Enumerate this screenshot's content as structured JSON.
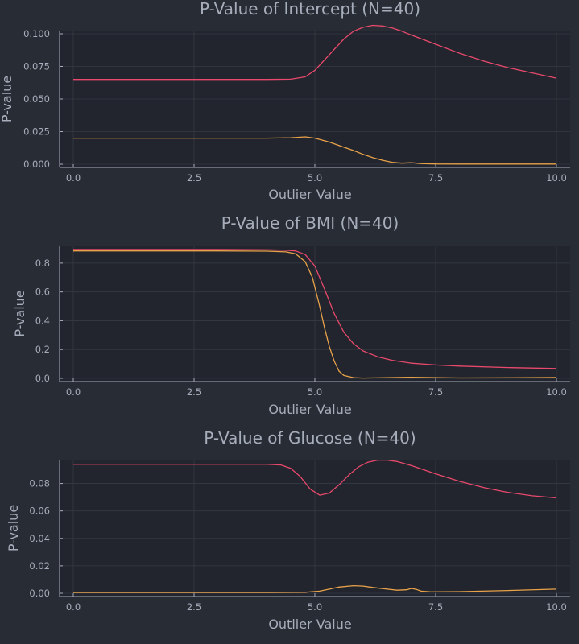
{
  "chart_data": [
    {
      "type": "line",
      "title": "P-Value of Intercept (N=40)",
      "xlabel": "Outlier Value",
      "ylabel": "P-value",
      "xlim": [
        0,
        10
      ],
      "ylim": [
        0,
        0.1
      ],
      "x_ticks": [
        "0.0",
        "2.5",
        "5.0",
        "7.5",
        "10.0"
      ],
      "y_ticks": [
        "0.000",
        "0.025",
        "0.050",
        "0.075",
        "0.100"
      ],
      "grid": true,
      "series": [
        {
          "color": "#e8496c",
          "x": [
            0,
            1,
            2,
            3,
            4,
            4.5,
            4.8,
            5.0,
            5.2,
            5.4,
            5.6,
            5.8,
            6.0,
            6.2,
            6.4,
            6.6,
            6.8,
            7.0,
            7.5,
            8.0,
            8.5,
            9.0,
            9.5,
            10.0
          ],
          "y": [
            0.065,
            0.065,
            0.065,
            0.065,
            0.065,
            0.0652,
            0.067,
            0.072,
            0.08,
            0.088,
            0.096,
            0.102,
            0.105,
            0.1065,
            0.106,
            0.1045,
            0.102,
            0.099,
            0.092,
            0.085,
            0.079,
            0.074,
            0.07,
            0.066
          ]
        },
        {
          "color": "#e8a24a",
          "x": [
            0,
            1,
            2,
            3,
            4,
            4.5,
            4.8,
            5.0,
            5.3,
            5.6,
            5.8,
            6.0,
            6.2,
            6.4,
            6.6,
            6.8,
            7.0,
            7.2,
            7.5,
            8.0,
            9.0,
            10.0
          ],
          "y": [
            0.02,
            0.02,
            0.02,
            0.02,
            0.02,
            0.0203,
            0.021,
            0.02,
            0.017,
            0.013,
            0.0105,
            0.0075,
            0.005,
            0.003,
            0.0015,
            0.0008,
            0.0012,
            0.0005,
            0.0002,
            0.0001,
            0.0001,
            0.0001
          ]
        }
      ]
    },
    {
      "type": "line",
      "title": "P-Value of BMI (N=40)",
      "xlabel": "Outlier Value",
      "ylabel": "P-value",
      "xlim": [
        0,
        10
      ],
      "ylim": [
        0,
        0.9
      ],
      "x_ticks": [
        "0.0",
        "2.5",
        "5.0",
        "7.5",
        "10.0"
      ],
      "y_ticks": [
        "0.0",
        "0.2",
        "0.4",
        "0.6",
        "0.8"
      ],
      "grid": true,
      "series": [
        {
          "color": "#e8496c",
          "x": [
            0,
            1,
            2,
            3,
            4,
            4.4,
            4.6,
            4.8,
            5.0,
            5.2,
            5.4,
            5.6,
            5.8,
            6.0,
            6.3,
            6.6,
            7.0,
            7.5,
            8.0,
            9.0,
            10.0
          ],
          "y": [
            0.895,
            0.895,
            0.895,
            0.895,
            0.893,
            0.89,
            0.885,
            0.86,
            0.78,
            0.62,
            0.45,
            0.32,
            0.24,
            0.19,
            0.15,
            0.125,
            0.105,
            0.093,
            0.085,
            0.075,
            0.068
          ]
        },
        {
          "color": "#e8a24a",
          "x": [
            0,
            1,
            2,
            3,
            4,
            4.4,
            4.6,
            4.8,
            4.95,
            5.1,
            5.2,
            5.3,
            5.4,
            5.5,
            5.6,
            5.8,
            6.0,
            7.0,
            8.0,
            9.0,
            10.0
          ],
          "y": [
            0.885,
            0.885,
            0.885,
            0.885,
            0.883,
            0.878,
            0.865,
            0.81,
            0.7,
            0.5,
            0.35,
            0.22,
            0.12,
            0.05,
            0.02,
            0.005,
            0.002,
            0.008,
            0.003,
            0.004,
            0.006
          ]
        }
      ]
    },
    {
      "type": "line",
      "title": "P-Value of Glucose (N=40)",
      "xlabel": "Outlier Value",
      "ylabel": "P-value",
      "xlim": [
        0,
        10
      ],
      "ylim": [
        0,
        0.095
      ],
      "x_ticks": [
        "0.0",
        "2.5",
        "5.0",
        "7.5",
        "10.0"
      ],
      "y_ticks": [
        "0.00",
        "0.02",
        "0.04",
        "0.06",
        "0.08"
      ],
      "grid": true,
      "series": [
        {
          "color": "#e8496c",
          "x": [
            0,
            1,
            2,
            3,
            4,
            4.3,
            4.5,
            4.7,
            4.9,
            5.1,
            5.3,
            5.5,
            5.7,
            5.9,
            6.1,
            6.3,
            6.5,
            6.7,
            7.0,
            7.5,
            8.0,
            8.5,
            9.0,
            9.5,
            10.0
          ],
          "y": [
            0.094,
            0.094,
            0.094,
            0.094,
            0.094,
            0.0935,
            0.091,
            0.085,
            0.076,
            0.0715,
            0.073,
            0.079,
            0.086,
            0.092,
            0.0955,
            0.097,
            0.097,
            0.096,
            0.093,
            0.087,
            0.0815,
            0.077,
            0.0735,
            0.071,
            0.0695
          ]
        },
        {
          "color": "#e8a24a",
          "x": [
            0,
            1,
            2,
            3,
            4,
            4.8,
            5.1,
            5.3,
            5.5,
            5.8,
            6.0,
            6.2,
            6.5,
            6.7,
            6.9,
            7.0,
            7.1,
            7.2,
            7.4,
            8.0,
            9.0,
            10.0
          ],
          "y": [
            0.0005,
            0.0005,
            0.0005,
            0.0005,
            0.0005,
            0.0007,
            0.0015,
            0.003,
            0.0045,
            0.0055,
            0.0052,
            0.0042,
            0.003,
            0.0022,
            0.0025,
            0.0035,
            0.0028,
            0.0015,
            0.001,
            0.0012,
            0.002,
            0.003
          ]
        }
      ]
    }
  ]
}
